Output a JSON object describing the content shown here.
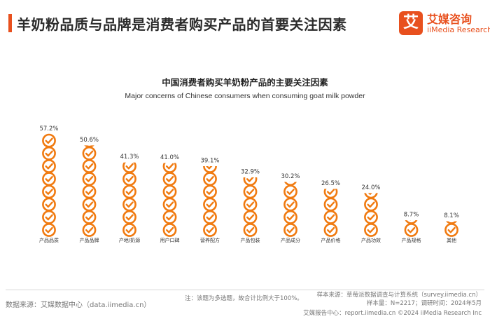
{
  "header": {
    "title": "羊奶粉品质与品牌是消费者购买产品的首要关注因素"
  },
  "logo": {
    "mark": "艾",
    "cn": "艾媒咨询",
    "en": "iiMedia Research"
  },
  "colors": {
    "accent": "#e8501e",
    "icon": "#f07a10",
    "text": "#333333",
    "muted": "#777777"
  },
  "chart_data": {
    "type": "bar",
    "style": "pictograph-check-icons",
    "title": "中国消费者购买羊奶粉产品的主要关注因素",
    "subtitle": "Major concerns of Chinese consumers when consuming goat milk powder",
    "categories": [
      "产品品质",
      "产品品牌",
      "产地/奶源",
      "用户口碑",
      "营养配方",
      "产品包装",
      "产品成分",
      "产品价格",
      "产品功效",
      "产品规格",
      "其他"
    ],
    "values": [
      57.2,
      50.6,
      41.3,
      41.0,
      39.1,
      32.9,
      30.2,
      26.5,
      24.0,
      8.7,
      8.1
    ],
    "labels": [
      "57.2%",
      "50.6%",
      "41.3%",
      "41.0%",
      "39.1%",
      "32.9%",
      "30.2%",
      "26.5%",
      "24.0%",
      "8.7%",
      "8.1%"
    ],
    "units_per_icon": 7.15,
    "xlabel": "",
    "ylabel": ""
  },
  "footer": {
    "source_left": "数据来源：艾媒数据中心（data.iimedia.cn）",
    "note": "注：该题为多选题，故合计比例大于100%。",
    "source_right": "样本来源：草莓派数据调查与计算系统（survey.iimedia.cn）",
    "sample": "样本量：N=2217；调研时间：2024年5月",
    "copyright": "艾媒报告中心：report.iimedia.cn    ©2024  iiMedia Research  Inc"
  }
}
